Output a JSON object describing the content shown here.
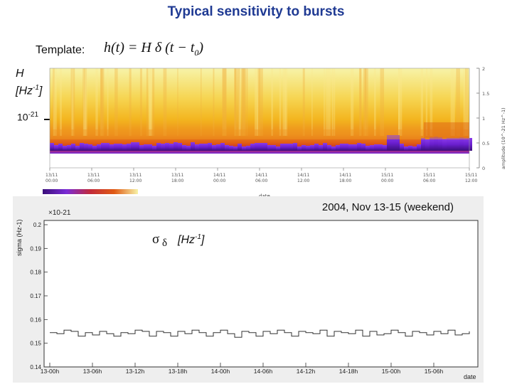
{
  "title": "Typical sensitivity to bursts",
  "template_label": "Template:",
  "formula": {
    "lhs": "h(t) = H",
    "delta": "δ",
    "rhs": "(t − t",
    "sub": "0",
    "close": ")"
  },
  "heatmap": {
    "y_label_line1": "H",
    "y_label_line2": "[Hz",
    "y_label_sup": "-1",
    "y_label_close": "]",
    "tick_base": "10",
    "tick_exp": "-21",
    "right_axis_label": "amplitude (10^-21 Hz^-1)",
    "right_ticks": [
      "2",
      "1.5",
      "1",
      "0.5",
      "0"
    ],
    "x_ticks": [
      {
        "d": "13/11",
        "t": "00:00"
      },
      {
        "d": "13/11",
        "t": "06:00"
      },
      {
        "d": "13/11",
        "t": "12:00"
      },
      {
        "d": "13/11",
        "t": "18:00"
      },
      {
        "d": "14/11",
        "t": "00:00"
      },
      {
        "d": "14/11",
        "t": "06:00"
      },
      {
        "d": "14/11",
        "t": "12:00"
      },
      {
        "d": "14/11",
        "t": "18:00"
      },
      {
        "d": "15/11",
        "t": "00:00"
      },
      {
        "d": "15/11",
        "t": "06:00"
      },
      {
        "d": "15/11",
        "t": "12:00"
      }
    ],
    "x_label": "date",
    "colors": {
      "high": "#f7f3a8",
      "mid": "#f3b51f",
      "low": "#e05a14",
      "floor": "#6b1fd0",
      "deep": "#3a0e7a"
    }
  },
  "timeseries_header": "2004, Nov 13-15 (weekend)",
  "chart_data": {
    "type": "line",
    "ylabel": "sigma (Hz-1)",
    "multiplier": "×10-21",
    "annotation": {
      "sym1": "σ",
      "sym2": "δ",
      "text": "[Hz",
      "sup": "-1",
      "close": "]"
    },
    "xlabel": "date",
    "x_ticks": [
      "13-00h",
      "13-06h",
      "13-12h",
      "13-18h",
      "14-00h",
      "14-06h",
      "14-12h",
      "14-18h",
      "15-00h",
      "15-06h"
    ],
    "y_ticks": [
      "0.2",
      "0.19",
      "0.18",
      "0.17",
      "0.16",
      "0.15",
      "0.14"
    ],
    "ylim": [
      0.14,
      0.2
    ],
    "xlim": [
      0,
      59
    ],
    "x_unit": "hours since 13-00h",
    "values": [
      0.1545,
      0.154,
      0.1555,
      0.155,
      0.153,
      0.1545,
      0.1535,
      0.155,
      0.154,
      0.153,
      0.1545,
      0.154,
      0.1555,
      0.155,
      0.153,
      0.155,
      0.1545,
      0.153,
      0.155,
      0.154,
      0.1555,
      0.1545,
      0.153,
      0.1545,
      0.1555,
      0.154,
      0.1525,
      0.155,
      0.1545,
      0.153,
      0.155,
      0.154,
      0.1555,
      0.1545,
      0.153,
      0.155,
      0.1545,
      0.154,
      0.1555,
      0.153,
      0.155,
      0.1545,
      0.154,
      0.1555,
      0.153,
      0.155,
      0.1535,
      0.154,
      0.1555,
      0.1545,
      0.153,
      0.155,
      0.1545,
      0.1535,
      0.155,
      0.154,
      0.1555,
      0.1535,
      0.154,
      0.155
    ]
  }
}
